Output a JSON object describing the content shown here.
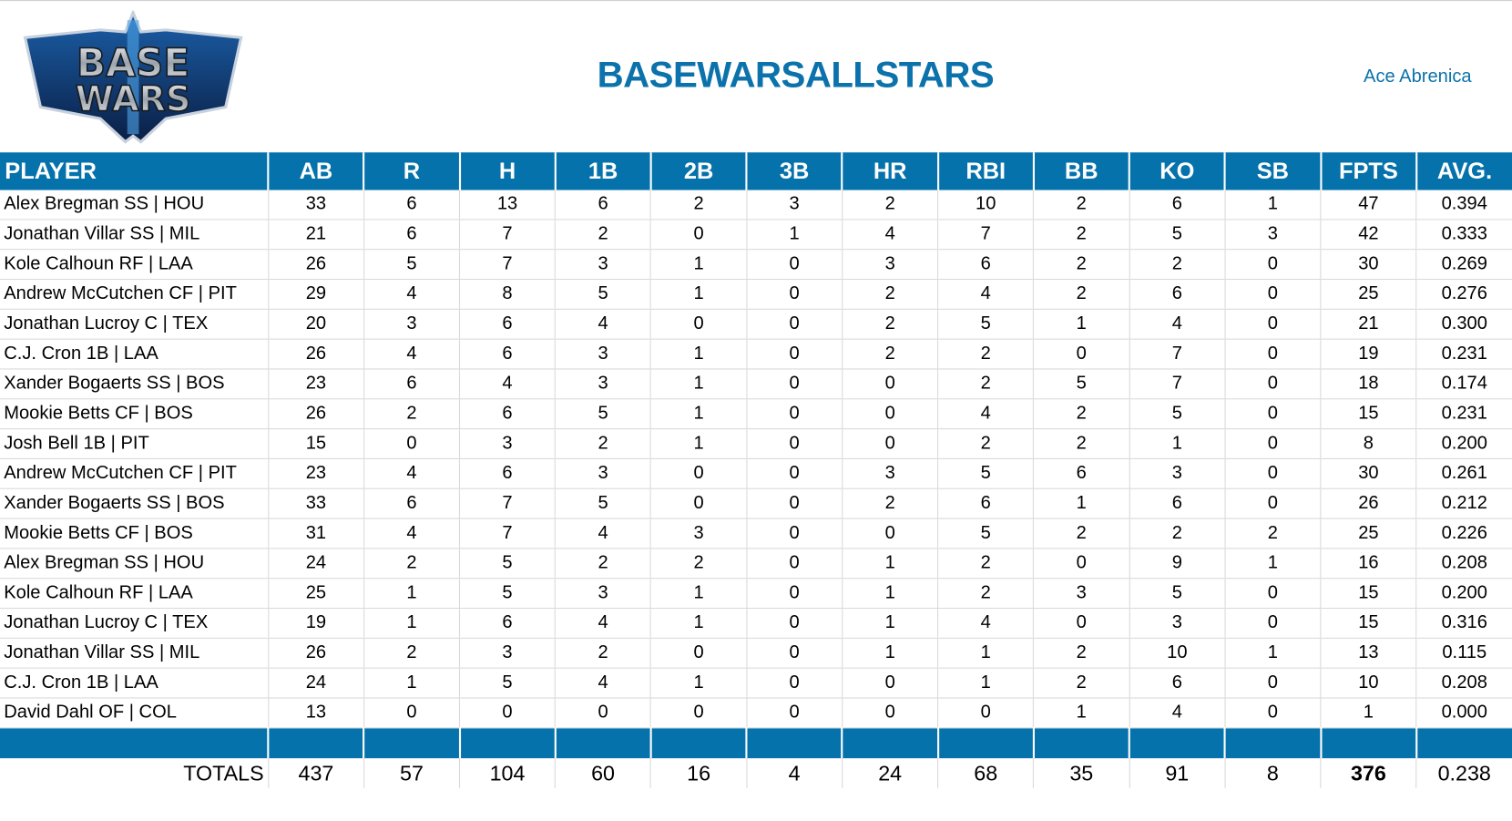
{
  "logo": {
    "text_top": "BASE",
    "text_bottom": "WARS"
  },
  "header": {
    "title": "BASEWARSALLSTARS",
    "user": "Ace Abrenica"
  },
  "table": {
    "columns": [
      "PLAYER",
      "AB",
      "R",
      "H",
      "1B",
      "2B",
      "3B",
      "HR",
      "RBI",
      "BB",
      "KO",
      "SB",
      "FPTS",
      "AVG."
    ],
    "rows": [
      [
        "Alex Bregman SS | HOU",
        "33",
        "6",
        "13",
        "6",
        "2",
        "3",
        "2",
        "10",
        "2",
        "6",
        "1",
        "47",
        "0.394"
      ],
      [
        "Jonathan Villar SS | MIL",
        "21",
        "6",
        "7",
        "2",
        "0",
        "1",
        "4",
        "7",
        "2",
        "5",
        "3",
        "42",
        "0.333"
      ],
      [
        "Kole Calhoun RF | LAA",
        "26",
        "5",
        "7",
        "3",
        "1",
        "0",
        "3",
        "6",
        "2",
        "2",
        "0",
        "30",
        "0.269"
      ],
      [
        "Andrew McCutchen CF | PIT",
        "29",
        "4",
        "8",
        "5",
        "1",
        "0",
        "2",
        "4",
        "2",
        "6",
        "0",
        "25",
        "0.276"
      ],
      [
        "Jonathan Lucroy C | TEX",
        "20",
        "3",
        "6",
        "4",
        "0",
        "0",
        "2",
        "5",
        "1",
        "4",
        "0",
        "21",
        "0.300"
      ],
      [
        "C.J. Cron 1B | LAA",
        "26",
        "4",
        "6",
        "3",
        "1",
        "0",
        "2",
        "2",
        "0",
        "7",
        "0",
        "19",
        "0.231"
      ],
      [
        "Xander Bogaerts SS | BOS",
        "23",
        "6",
        "4",
        "3",
        "1",
        "0",
        "0",
        "2",
        "5",
        "7",
        "0",
        "18",
        "0.174"
      ],
      [
        "Mookie Betts CF | BOS",
        "26",
        "2",
        "6",
        "5",
        "1",
        "0",
        "0",
        "4",
        "2",
        "5",
        "0",
        "15",
        "0.231"
      ],
      [
        "Josh Bell 1B | PIT",
        "15",
        "0",
        "3",
        "2",
        "1",
        "0",
        "0",
        "2",
        "2",
        "1",
        "0",
        "8",
        "0.200"
      ],
      [
        "Andrew McCutchen CF | PIT",
        "23",
        "4",
        "6",
        "3",
        "0",
        "0",
        "3",
        "5",
        "6",
        "3",
        "0",
        "30",
        "0.261"
      ],
      [
        "Xander Bogaerts SS | BOS",
        "33",
        "6",
        "7",
        "5",
        "0",
        "0",
        "2",
        "6",
        "1",
        "6",
        "0",
        "26",
        "0.212"
      ],
      [
        "Mookie Betts CF | BOS",
        "31",
        "4",
        "7",
        "4",
        "3",
        "0",
        "0",
        "5",
        "2",
        "2",
        "2",
        "25",
        "0.226"
      ],
      [
        "Alex Bregman SS | HOU",
        "24",
        "2",
        "5",
        "2",
        "2",
        "0",
        "1",
        "2",
        "0",
        "9",
        "1",
        "16",
        "0.208"
      ],
      [
        "Kole Calhoun RF | LAA",
        "25",
        "1",
        "5",
        "3",
        "1",
        "0",
        "1",
        "2",
        "3",
        "5",
        "0",
        "15",
        "0.200"
      ],
      [
        "Jonathan Lucroy C | TEX",
        "19",
        "1",
        "6",
        "4",
        "1",
        "0",
        "1",
        "4",
        "0",
        "3",
        "0",
        "15",
        "0.316"
      ],
      [
        "Jonathan Villar SS | MIL",
        "26",
        "2",
        "3",
        "2",
        "0",
        "0",
        "1",
        "1",
        "2",
        "10",
        "1",
        "13",
        "0.115"
      ],
      [
        "C.J. Cron 1B | LAA",
        "24",
        "1",
        "5",
        "4",
        "1",
        "0",
        "0",
        "1",
        "2",
        "6",
        "0",
        "10",
        "0.208"
      ],
      [
        "David Dahl OF | COL",
        "13",
        "0",
        "0",
        "0",
        "0",
        "0",
        "0",
        "0",
        "1",
        "4",
        "0",
        "1",
        "0.000"
      ]
    ],
    "totals": [
      "TOTALS",
      "437",
      "57",
      "104",
      "60",
      "16",
      "4",
      "24",
      "68",
      "35",
      "91",
      "8",
      "376",
      "0.238"
    ]
  },
  "colors": {
    "accent": "#0572ab",
    "title": "#0b72ab"
  }
}
